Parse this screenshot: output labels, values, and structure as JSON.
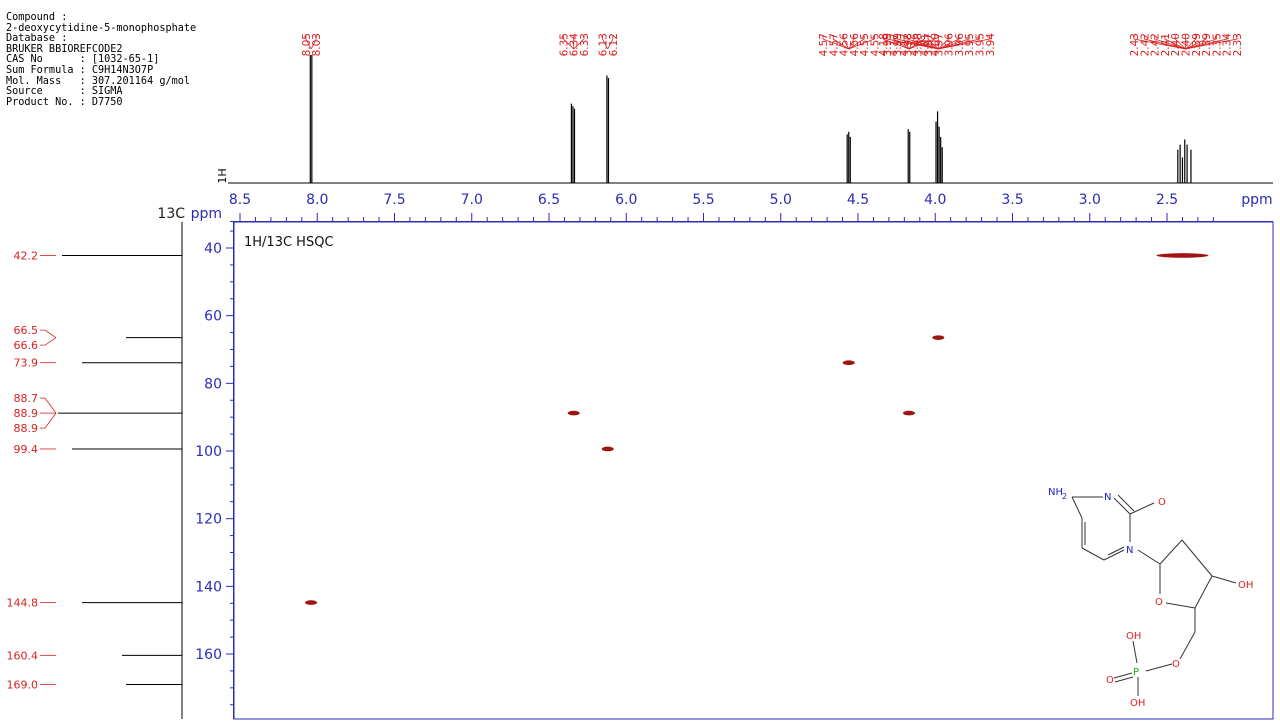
{
  "info": {
    "compound_label": "Compound :",
    "compound_name": "2-deoxycytidine-5-monophosphate",
    "database_label": "Database :",
    "database": "BRUKER BBIOREFCODE2",
    "cas": "CAS No      : [1032-65-1]",
    "formula": "Sum Formula : C9H14N3O7P",
    "mass": "Mol. Mass   : 307.201164 g/mol",
    "source": "Source      : SIGMA",
    "product": "Product No. : D7750"
  },
  "colors": {
    "axis": "#2b2bb8",
    "red": "#d81f1f",
    "peak": "#000000",
    "cross": "#a01414"
  },
  "chart_data": {
    "type": "scatter",
    "title": "1H/13C HSQC",
    "x_axis": {
      "label": "ppm",
      "range": [
        8.5,
        2.2
      ],
      "ticks": [
        8.5,
        8.0,
        7.5,
        7.0,
        6.5,
        6.0,
        5.5,
        5.0,
        4.5,
        4.0,
        3.5,
        3.0,
        2.5
      ],
      "tick_labels": [
        "8.5",
        "8.0",
        "7.5",
        "7.0",
        "6.5",
        "6.0",
        "5.5",
        "5.0",
        "4.5",
        "4.0",
        "3.5",
        "3.0",
        "2.5"
      ]
    },
    "y_axis": {
      "label": "13C ppm",
      "range": [
        30,
        180
      ],
      "ticks": [
        40,
        60,
        80,
        100,
        120,
        140,
        160
      ],
      "tick_labels": [
        "40",
        "60",
        "80",
        "100",
        "120",
        "140",
        "160"
      ]
    },
    "proton_axis_label": "1H",
    "proton_peak_labels": [
      {
        "ppm": 8.04,
        "labels": [
          "8.05",
          "8.03"
        ]
      },
      {
        "ppm": 6.34,
        "labels": [
          "6.35",
          "6.34",
          "6.33"
        ]
      },
      {
        "ppm": 6.12,
        "labels": [
          "6.13",
          "6.12"
        ]
      },
      {
        "ppm": 4.56,
        "labels": [
          "4.57",
          "4.57",
          "4.56",
          "4.56",
          "4.55",
          "4.55"
        ]
      },
      {
        "ppm": 4.17,
        "labels": [
          "4.18",
          "4.17",
          "4.17",
          "4.16",
          "4.01",
          "4.00"
        ]
      },
      {
        "ppm": 3.98,
        "labels": [
          "3.99",
          "3.99",
          "3.98",
          "3.98",
          "3.97",
          "3.97",
          "3.96",
          "3.96",
          "3.95",
          "3.95",
          "3.94"
        ]
      },
      {
        "ppm": 2.38,
        "labels": [
          "2.43",
          "2.42",
          "2.42",
          "2.41",
          "2.40",
          "2.40",
          "2.39",
          "2.39",
          "2.35",
          "2.34",
          "2.33"
        ]
      }
    ],
    "proton_peaks": [
      {
        "ppm": 8.045,
        "h": 1.0
      },
      {
        "ppm": 8.035,
        "h": 1.0
      },
      {
        "ppm": 6.355,
        "h": 0.62
      },
      {
        "ppm": 6.345,
        "h": 0.6
      },
      {
        "ppm": 6.335,
        "h": 0.58
      },
      {
        "ppm": 6.125,
        "h": 0.84
      },
      {
        "ppm": 6.115,
        "h": 0.82
      },
      {
        "ppm": 4.57,
        "h": 0.38
      },
      {
        "ppm": 4.56,
        "h": 0.4
      },
      {
        "ppm": 4.55,
        "h": 0.36
      },
      {
        "ppm": 4.175,
        "h": 0.42
      },
      {
        "ppm": 4.165,
        "h": 0.4
      },
      {
        "ppm": 3.995,
        "h": 0.48
      },
      {
        "ppm": 3.985,
        "h": 0.56
      },
      {
        "ppm": 3.975,
        "h": 0.44
      },
      {
        "ppm": 3.965,
        "h": 0.36
      },
      {
        "ppm": 3.955,
        "h": 0.28
      },
      {
        "ppm": 2.43,
        "h": 0.26
      },
      {
        "ppm": 2.415,
        "h": 0.3
      },
      {
        "ppm": 2.4,
        "h": 0.2
      },
      {
        "ppm": 2.385,
        "h": 0.34
      },
      {
        "ppm": 2.37,
        "h": 0.3
      },
      {
        "ppm": 2.345,
        "h": 0.26
      }
    ],
    "carbon_peak_labels": [
      {
        "ppm": 42.2,
        "labels": [
          "42.2"
        ]
      },
      {
        "ppm": 66.5,
        "labels": [
          "66.5",
          "66.6"
        ]
      },
      {
        "ppm": 73.9,
        "labels": [
          "73.9"
        ]
      },
      {
        "ppm": 88.8,
        "labels": [
          "88.7",
          "88.9",
          "88.9"
        ]
      },
      {
        "ppm": 99.4,
        "labels": [
          "99.4"
        ]
      },
      {
        "ppm": 144.8,
        "labels": [
          "144.8"
        ]
      },
      {
        "ppm": 160.4,
        "labels": [
          "160.4"
        ]
      },
      {
        "ppm": 169.0,
        "labels": [
          "169.0"
        ]
      }
    ],
    "carbon_peaks": [
      {
        "ppm": 42.2,
        "h": 0.6
      },
      {
        "ppm": 66.5,
        "h": 0.28
      },
      {
        "ppm": 73.9,
        "h": 0.5
      },
      {
        "ppm": 88.8,
        "h": 0.62
      },
      {
        "ppm": 99.4,
        "h": 0.55
      },
      {
        "ppm": 144.8,
        "h": 0.5
      },
      {
        "ppm": 160.4,
        "h": 0.3
      },
      {
        "ppm": 169.0,
        "h": 0.28
      }
    ],
    "cross_peaks": [
      {
        "h": 8.04,
        "c": 144.8
      },
      {
        "h": 6.34,
        "c": 88.8
      },
      {
        "h": 6.12,
        "c": 99.4
      },
      {
        "h": 4.56,
        "c": 73.9
      },
      {
        "h": 4.17,
        "c": 88.8
      },
      {
        "h": 3.98,
        "c": 66.5
      },
      {
        "h": 2.4,
        "c": 42.2,
        "wide": true
      }
    ]
  },
  "structure": {
    "atoms": {
      "nh2": "NH",
      "nh2_sub": "2",
      "n_ring_top": "N",
      "o_carbonyl": "O",
      "n_ring": "N",
      "o_ring": "O",
      "oh": "OH",
      "o_link": "O",
      "p": "P",
      "oh_p1": "OH",
      "o_double": "O",
      "oh_p2": "OH"
    }
  }
}
